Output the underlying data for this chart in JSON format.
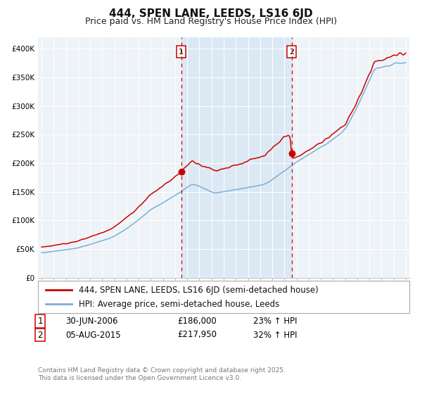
{
  "title": "444, SPEN LANE, LEEDS, LS16 6JD",
  "subtitle": "Price paid vs. HM Land Registry's House Price Index (HPI)",
  "background_color": "#ffffff",
  "plot_bg_color": "#eef3f8",
  "grid_color": "#ffffff",
  "red_line_color": "#cc0000",
  "blue_line_color": "#7bafd4",
  "shade_color": "#dce9f5",
  "vline_color": "#cc0000",
  "sale1_date": 2006.5,
  "sale1_price": 186000,
  "sale2_date": 2015.6,
  "sale2_price": 217950,
  "ylim": [
    0,
    420000
  ],
  "xlim_start": 1994.7,
  "xlim_end": 2025.3,
  "yticks": [
    0,
    50000,
    100000,
    150000,
    200000,
    250000,
    300000,
    350000,
    400000
  ],
  "ytick_labels": [
    "£0",
    "£50K",
    "£100K",
    "£150K",
    "£200K",
    "£250K",
    "£300K",
    "£350K",
    "£400K"
  ],
  "xticks": [
    1995,
    1996,
    1997,
    1998,
    1999,
    2000,
    2001,
    2002,
    2003,
    2004,
    2005,
    2006,
    2007,
    2008,
    2009,
    2010,
    2011,
    2012,
    2013,
    2014,
    2015,
    2016,
    2017,
    2018,
    2019,
    2020,
    2021,
    2022,
    2023,
    2024,
    2025
  ],
  "legend_label_red": "444, SPEN LANE, LEEDS, LS16 6JD (semi-detached house)",
  "legend_label_blue": "HPI: Average price, semi-detached house, Leeds",
  "table_row1": [
    "1",
    "30-JUN-2006",
    "£186,000",
    "23% ↑ HPI"
  ],
  "table_row2": [
    "2",
    "05-AUG-2015",
    "£217,950",
    "32% ↑ HPI"
  ],
  "footer_text": "Contains HM Land Registry data © Crown copyright and database right 2025.\nThis data is licensed under the Open Government Licence v3.0.",
  "title_fontsize": 11,
  "subtitle_fontsize": 9,
  "tick_fontsize": 7.5,
  "legend_fontsize": 8.5,
  "table_fontsize": 8.5
}
